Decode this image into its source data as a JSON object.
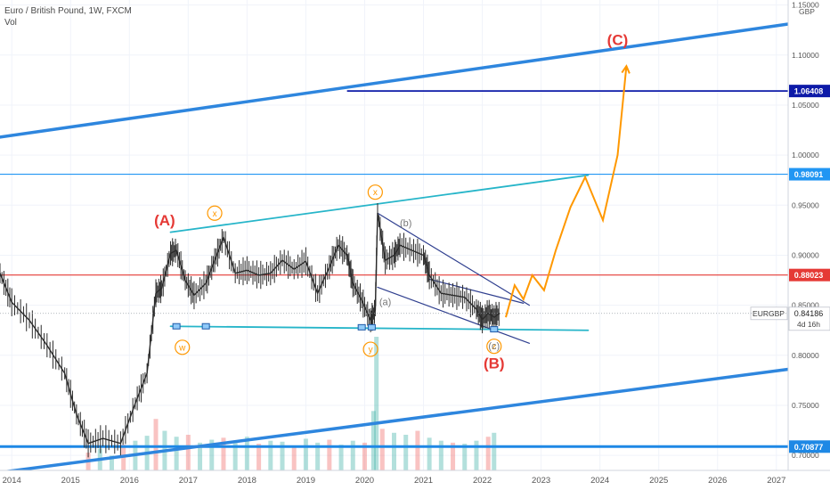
{
  "header": {
    "symbol_line": "Euro / British Pound, 1W, FXCM",
    "volume_label": "Vol"
  },
  "price_axis": {
    "currency": "GBP",
    "ticks": [
      "1.15000",
      "1.10000",
      "1.05000",
      "1.00000",
      "0.95000",
      "0.90000",
      "0.85000",
      "0.80000",
      "0.75000",
      "0.70000"
    ],
    "current": {
      "symbol": "EURGBP",
      "price": "0.84186",
      "countdown": "4d 16h"
    }
  },
  "time_axis": {
    "ticks": [
      "2014",
      "2015",
      "2016",
      "2017",
      "2018",
      "2019",
      "2020",
      "2021",
      "2022",
      "2023",
      "2024",
      "2025",
      "2026",
      "2027"
    ]
  },
  "chart_data": {
    "type": "line",
    "symbol": "EURGBP",
    "timeframe": "1W",
    "source": "FXCM",
    "price_range": [
      0.685,
      1.155
    ],
    "x_range": [
      2013.8,
      2027.2
    ],
    "grid": true,
    "price_series": {
      "x": [
        2013.8,
        2014.0,
        2014.3,
        2014.6,
        2014.9,
        2015.1,
        2015.3,
        2015.55,
        2015.85,
        2016.1,
        2016.3,
        2016.45,
        2016.55,
        2016.7,
        2016.8,
        2016.95,
        2017.1,
        2017.3,
        2017.45,
        2017.6,
        2017.8,
        2018.0,
        2018.2,
        2018.4,
        2018.6,
        2018.8,
        2019.0,
        2019.2,
        2019.4,
        2019.55,
        2019.7,
        2019.8,
        2019.95,
        2020.1,
        2020.18,
        2020.22,
        2020.35,
        2020.5,
        2020.6,
        2020.8,
        2021.0,
        2021.1,
        2021.3,
        2021.5,
        2021.7,
        2021.9,
        2022.0,
        2022.1,
        2022.2,
        2022.3
      ],
      "y": [
        0.882,
        0.853,
        0.835,
        0.81,
        0.782,
        0.741,
        0.712,
        0.717,
        0.712,
        0.752,
        0.782,
        0.862,
        0.867,
        0.902,
        0.905,
        0.875,
        0.86,
        0.872,
        0.895,
        0.918,
        0.882,
        0.885,
        0.88,
        0.882,
        0.895,
        0.886,
        0.894,
        0.862,
        0.888,
        0.91,
        0.9,
        0.872,
        0.855,
        0.835,
        0.845,
        0.942,
        0.895,
        0.9,
        0.91,
        0.905,
        0.9,
        0.88,
        0.862,
        0.86,
        0.858,
        0.846,
        0.836,
        0.842,
        0.838,
        0.842
      ]
    },
    "volume": {
      "x": [
        2015.3,
        2015.5,
        2015.7,
        2015.9,
        2016.1,
        2016.3,
        2016.45,
        2016.6,
        2016.8,
        2017.0,
        2017.2,
        2017.4,
        2017.6,
        2017.8,
        2018.0,
        2018.2,
        2018.4,
        2018.6,
        2018.8,
        2019.0,
        2019.2,
        2019.4,
        2019.6,
        2019.8,
        2020.0,
        2020.15,
        2020.2,
        2020.3,
        2020.5,
        2020.7,
        2020.9,
        2021.1,
        2021.3,
        2021.5,
        2021.7,
        2021.9,
        2022.1,
        2022.2
      ],
      "values": [
        18,
        22,
        15,
        26,
        30,
        35,
        52,
        40,
        34,
        36,
        28,
        31,
        33,
        30,
        34,
        27,
        30,
        29,
        25,
        32,
        28,
        31,
        26,
        30,
        28,
        60,
        135,
        42,
        38,
        36,
        40,
        33,
        30,
        28,
        27,
        30,
        34,
        38
      ]
    },
    "horizontal_levels": [
      {
        "label": "1.06408",
        "price": 1.06408,
        "color": "#0d1aa8",
        "from_x": 2019.7
      },
      {
        "label": "0.98091",
        "price": 0.98091,
        "color": "#2196f3"
      },
      {
        "label": "0.88023",
        "price": 0.88023,
        "color": "#e53935"
      },
      {
        "label": "0.70877",
        "price": 0.70877,
        "color": "#1e88e5"
      }
    ],
    "trendlines": [
      {
        "name": "upper-channel",
        "x": [
          2013.8,
          2027.2
        ],
        "y": [
          1.018,
          1.131
        ],
        "color": "#2e86de"
      },
      {
        "name": "lower-channel",
        "x": [
          2013.8,
          2027.2
        ],
        "y": [
          0.683,
          0.786
        ],
        "color": "#2e86de"
      },
      {
        "name": "triangle-top",
        "x": [
          2016.7,
          2023.8
        ],
        "y": [
          0.923,
          0.98
        ],
        "color": "#26b5c9"
      },
      {
        "name": "triangle-bottom",
        "x": [
          2016.7,
          2023.8
        ],
        "y": [
          0.829,
          0.825
        ],
        "color": "#26b5c9"
      },
      {
        "name": "wedge-top-1",
        "x": [
          2020.22,
          2022.8
        ],
        "y": [
          0.942,
          0.85
        ],
        "color": "#2f3f8f"
      },
      {
        "name": "wedge-bottom-1",
        "x": [
          2020.22,
          2022.8
        ],
        "y": [
          0.868,
          0.812
        ],
        "color": "#2f3f8f"
      },
      {
        "name": "wedge-top-2",
        "x": [
          2021.1,
          2022.7
        ],
        "y": [
          0.876,
          0.852
        ],
        "color": "#2f3f8f"
      }
    ],
    "projection": {
      "color": "#ff9800",
      "x": [
        2022.4,
        2022.55,
        2022.7,
        2022.85,
        2023.05,
        2023.25,
        2023.5,
        2023.75,
        2024.05,
        2024.3,
        2024.45
      ],
      "y": [
        0.838,
        0.87,
        0.856,
        0.88,
        0.865,
        0.905,
        0.948,
        0.978,
        0.935,
        1.0,
        1.089
      ]
    },
    "wave_labels": [
      {
        "text": "(A)",
        "x": 2016.6,
        "y": 0.93,
        "color": "#e53935",
        "style": "plain",
        "size": "large"
      },
      {
        "text": "(B)",
        "x": 2022.2,
        "y": 0.787,
        "color": "#e53935",
        "style": "plain",
        "size": "large"
      },
      {
        "text": "(C)",
        "x": 2024.3,
        "y": 1.11,
        "color": "#e53935",
        "style": "plain",
        "size": "large"
      },
      {
        "text": "x",
        "x": 2017.45,
        "y": 0.942,
        "color": "#ff9800",
        "style": "circle"
      },
      {
        "text": "x",
        "x": 2020.18,
        "y": 0.963,
        "color": "#ff9800",
        "style": "circle"
      },
      {
        "text": "w",
        "x": 2016.9,
        "y": 0.808,
        "color": "#ff9800",
        "style": "circle"
      },
      {
        "text": "y",
        "x": 2020.1,
        "y": 0.806,
        "color": "#ff9800",
        "style": "circle"
      },
      {
        "text": "z",
        "x": 2022.2,
        "y": 0.809,
        "color": "#ff9800",
        "style": "circle"
      },
      {
        "text": "(a)",
        "x": 2020.35,
        "y": 0.85,
        "color": "#777777",
        "style": "plain",
        "size": "small"
      },
      {
        "text": "(b)",
        "x": 2020.7,
        "y": 0.929,
        "color": "#777777",
        "style": "plain",
        "size": "small"
      },
      {
        "text": "(c)",
        "x": 2022.2,
        "y": 0.806,
        "color": "#777777",
        "style": "plain",
        "size": "small"
      }
    ],
    "markers": [
      {
        "x": 2016.8,
        "y": 0.829
      },
      {
        "x": 2017.3,
        "y": 0.829
      },
      {
        "x": 2019.95,
        "y": 0.828
      },
      {
        "x": 2020.12,
        "y": 0.828
      },
      {
        "x": 2022.2,
        "y": 0.826
      }
    ]
  }
}
